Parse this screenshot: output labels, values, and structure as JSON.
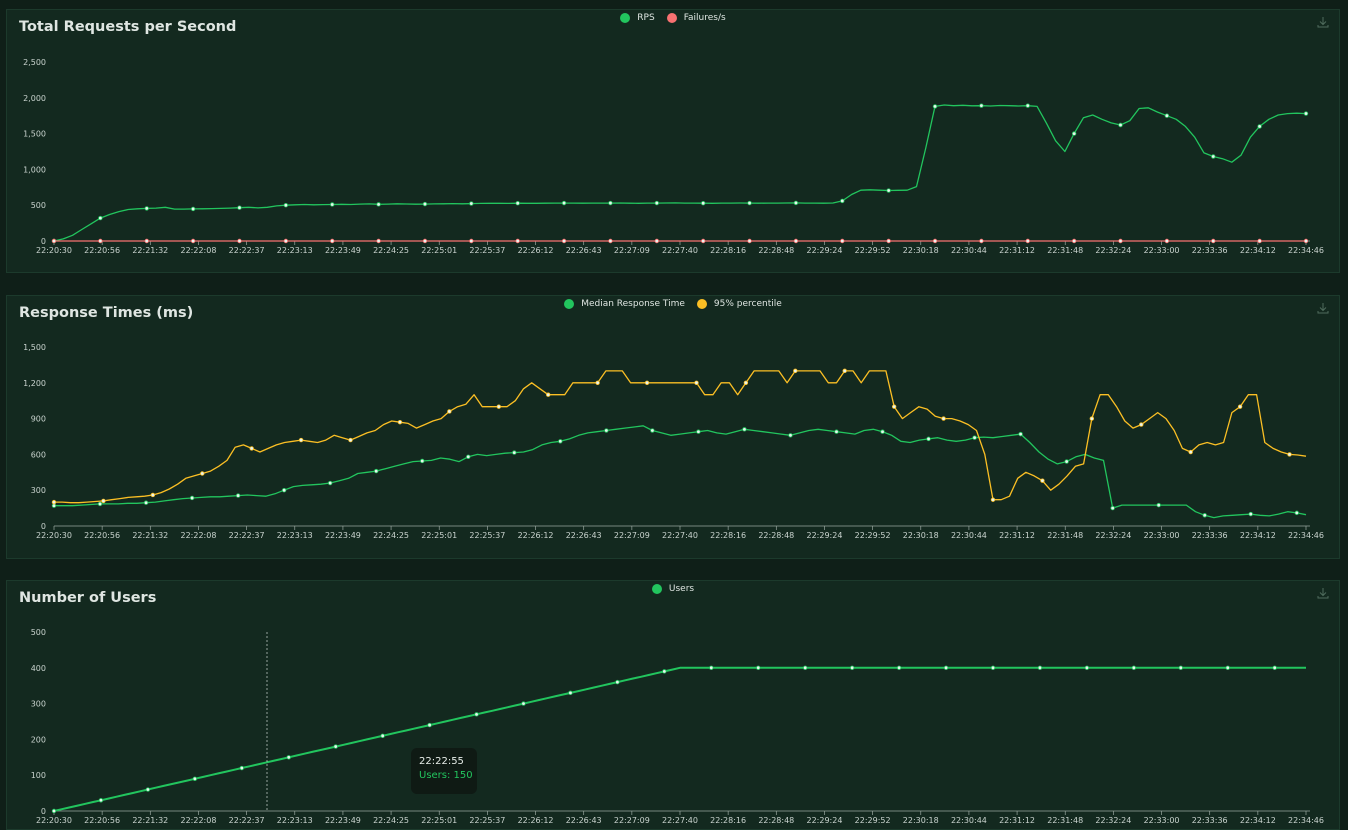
{
  "colors": {
    "rps": "#22c55e",
    "failures": "#f87171",
    "median": "#22c55e",
    "p95": "#fbbf24",
    "users": "#22c55e"
  },
  "icons": {
    "download": "download-icon"
  },
  "x_ticks": [
    "22:20:30",
    "22:20:56",
    "22:21:32",
    "22:22:08",
    "22:22:37",
    "22:23:13",
    "22:23:49",
    "22:24:25",
    "22:25:01",
    "22:25:37",
    "22:26:12",
    "22:26:43",
    "22:27:09",
    "22:27:40",
    "22:28:16",
    "22:28:48",
    "22:29:24",
    "22:29:52",
    "22:30:18",
    "22:30:44",
    "22:31:12",
    "22:31:48",
    "22:32:24",
    "22:33:00",
    "22:33:36",
    "22:34:12",
    "22:34:46"
  ],
  "tooltip": {
    "time": "22:22:55",
    "text": "Users: 150"
  },
  "chart_data": [
    {
      "type": "line",
      "title": "Total Requests per Second",
      "ylim": [
        0,
        2500
      ],
      "yticks": [
        "0",
        "500",
        "1,000",
        "1,500",
        "2,000",
        "2,500"
      ],
      "ytick_values": [
        0,
        500,
        1000,
        1500,
        2000,
        2500
      ],
      "series": [
        {
          "name": "RPS",
          "values": [
            0,
            30,
            80,
            160,
            240,
            320,
            370,
            410,
            440,
            450,
            455,
            460,
            470,
            445,
            445,
            448,
            450,
            452,
            455,
            460,
            465,
            470,
            462,
            470,
            490,
            500,
            505,
            510,
            505,
            508,
            510,
            512,
            510,
            515,
            518,
            512,
            515,
            520,
            517,
            514,
            516,
            518,
            520,
            522,
            520,
            523,
            525,
            526,
            527,
            525,
            528,
            526,
            527,
            528,
            529,
            530,
            529,
            528,
            530,
            529,
            530,
            531,
            528,
            527,
            529,
            530,
            531,
            532,
            529,
            530,
            528,
            527,
            529,
            530,
            531,
            530,
            528,
            529,
            530,
            531,
            532,
            530,
            529,
            528,
            531,
            560,
            650,
            710,
            715,
            710,
            705,
            708,
            710,
            760,
            1300,
            1880,
            1900,
            1890,
            1895,
            1888,
            1890,
            1885,
            1892,
            1890,
            1885,
            1890,
            1880,
            1650,
            1400,
            1250,
            1500,
            1720,
            1760,
            1700,
            1650,
            1620,
            1680,
            1850,
            1860,
            1800,
            1750,
            1700,
            1600,
            1450,
            1230,
            1180,
            1150,
            1100,
            1200,
            1450,
            1600,
            1700,
            1760,
            1780,
            1785,
            1780
          ],
          "markers_every": 5
        },
        {
          "name": "Failures/s",
          "values": [
            0,
            0,
            0,
            0,
            0,
            0,
            0,
            0,
            0,
            0,
            0,
            0,
            0,
            0,
            0,
            0,
            0,
            0,
            0,
            0,
            0,
            0,
            0,
            0,
            0,
            0,
            0,
            0,
            0,
            0,
            0,
            0,
            0,
            0,
            0,
            0,
            0,
            0,
            0,
            0,
            0,
            0,
            0,
            0,
            0,
            0,
            0,
            0,
            0,
            0,
            0,
            0,
            0,
            0,
            0,
            0,
            0,
            0,
            0,
            0,
            0,
            0,
            0,
            0,
            0,
            0,
            0,
            0,
            0,
            0,
            0,
            0,
            0,
            0,
            0,
            0,
            0,
            0,
            0,
            0,
            0,
            0,
            0,
            0,
            0,
            0,
            0,
            0,
            0,
            0,
            0,
            0,
            0,
            0,
            0,
            0,
            0,
            0,
            0,
            0,
            0,
            0,
            0,
            0,
            0,
            0,
            0,
            0,
            0,
            0,
            0,
            0,
            0,
            0,
            0,
            0,
            0,
            0,
            0,
            0,
            0,
            0,
            0,
            0,
            0,
            0,
            0,
            0,
            0,
            0,
            0,
            0,
            0,
            0,
            0,
            0
          ],
          "markers_every": 5
        }
      ]
    },
    {
      "type": "line",
      "title": "Response Times (ms)",
      "ylim": [
        0,
        1500
      ],
      "yticks": [
        "0",
        "300",
        "600",
        "900",
        "1,200",
        "1,500"
      ],
      "ytick_values": [
        0,
        300,
        600,
        900,
        1200,
        1500
      ],
      "series": [
        {
          "name": "Median Response Time",
          "values": [
            170,
            170,
            170,
            175,
            180,
            185,
            185,
            185,
            190,
            190,
            195,
            200,
            210,
            220,
            230,
            235,
            240,
            245,
            245,
            250,
            255,
            260,
            255,
            250,
            270,
            300,
            330,
            340,
            345,
            350,
            360,
            380,
            400,
            440,
            450,
            460,
            480,
            500,
            520,
            540,
            545,
            550,
            570,
            560,
            540,
            580,
            600,
            590,
            600,
            610,
            615,
            620,
            640,
            680,
            700,
            710,
            730,
            760,
            780,
            790,
            800,
            810,
            820,
            830,
            840,
            800,
            780,
            760,
            770,
            780,
            790,
            800,
            780,
            770,
            790,
            810,
            800,
            790,
            780,
            770,
            760,
            780,
            800,
            810,
            800,
            790,
            780,
            770,
            800,
            810,
            790,
            760,
            710,
            700,
            720,
            730,
            740,
            720,
            710,
            720,
            740,
            745,
            740,
            750,
            760,
            770,
            700,
            620,
            560,
            520,
            540,
            580,
            600,
            570,
            550,
            150,
            175,
            175,
            175,
            175,
            175,
            175,
            175,
            175,
            120,
            90,
            70,
            85,
            90,
            95,
            100,
            90,
            85,
            100,
            120,
            110,
            95
          ],
          "markers_every": 5
        },
        {
          "name": "95% percentile",
          "values": [
            200,
            200,
            195,
            195,
            200,
            205,
            210,
            220,
            230,
            240,
            245,
            250,
            260,
            280,
            310,
            350,
            400,
            420,
            440,
            460,
            500,
            550,
            660,
            680,
            650,
            620,
            650,
            680,
            700,
            710,
            720,
            710,
            700,
            720,
            760,
            740,
            720,
            750,
            780,
            800,
            850,
            880,
            870,
            860,
            820,
            850,
            880,
            900,
            960,
            1000,
            1020,
            1100,
            1000,
            1000,
            1000,
            1000,
            1050,
            1150,
            1200,
            1150,
            1100,
            1100,
            1100,
            1200,
            1200,
            1200,
            1200,
            1300,
            1300,
            1300,
            1200,
            1200,
            1200,
            1200,
            1200,
            1200,
            1200,
            1200,
            1200,
            1100,
            1100,
            1200,
            1200,
            1100,
            1200,
            1300,
            1300,
            1300,
            1300,
            1200,
            1300,
            1300,
            1300,
            1300,
            1200,
            1200,
            1300,
            1300,
            1200,
            1300,
            1300,
            1300,
            1000,
            900,
            950,
            1000,
            980,
            920,
            900,
            900,
            880,
            850,
            800,
            600,
            220,
            220,
            250,
            400,
            450,
            420,
            380,
            300,
            350,
            420,
            500,
            520,
            900,
            1100,
            1100,
            1000,
            880,
            820,
            850,
            900,
            950,
            900,
            800,
            650,
            620,
            680,
            700,
            680,
            700,
            950,
            1000,
            1100,
            1100,
            700,
            650,
            620,
            600,
            595,
            585
          ],
          "markers_every": 5
        }
      ]
    },
    {
      "type": "line",
      "title": "Number of Users",
      "ylim": [
        0,
        500
      ],
      "yticks": [
        "0",
        "100",
        "200",
        "300",
        "400",
        "500"
      ],
      "ytick_values": [
        0,
        100,
        200,
        300,
        400,
        500
      ],
      "series": [
        {
          "name": "Users",
          "values": [
            0,
            5,
            10,
            15,
            20,
            25,
            30,
            35,
            40,
            45,
            50,
            55,
            60,
            65,
            70,
            75,
            80,
            85,
            90,
            95,
            100,
            105,
            110,
            115,
            120,
            125,
            130,
            135,
            140,
            145,
            150,
            155,
            160,
            165,
            170,
            175,
            180,
            185,
            190,
            195,
            200,
            205,
            210,
            215,
            220,
            225,
            230,
            235,
            240,
            245,
            250,
            255,
            260,
            265,
            270,
            275,
            280,
            285,
            290,
            295,
            300,
            305,
            310,
            315,
            320,
            325,
            330,
            335,
            340,
            345,
            350,
            355,
            360,
            365,
            370,
            375,
            380,
            385,
            390,
            395,
            400,
            400,
            400,
            400,
            400,
            400,
            400,
            400,
            400,
            400,
            400,
            400,
            400,
            400,
            400,
            400,
            400,
            400,
            400,
            400,
            400,
            400,
            400,
            400,
            400,
            400,
            400,
            400,
            400,
            400,
            400,
            400,
            400,
            400,
            400,
            400,
            400,
            400,
            400,
            400,
            400,
            400,
            400,
            400,
            400,
            400,
            400,
            400,
            400,
            400,
            400,
            400,
            400,
            400,
            400,
            400,
            400,
            400,
            400,
            400,
            400,
            400,
            400,
            400,
            400,
            400,
            400,
            400,
            400,
            400,
            400,
            400,
            400,
            400,
            400,
            400,
            400,
            400,
            400,
            400,
            400
          ],
          "markers_every": 5
        }
      ]
    }
  ]
}
